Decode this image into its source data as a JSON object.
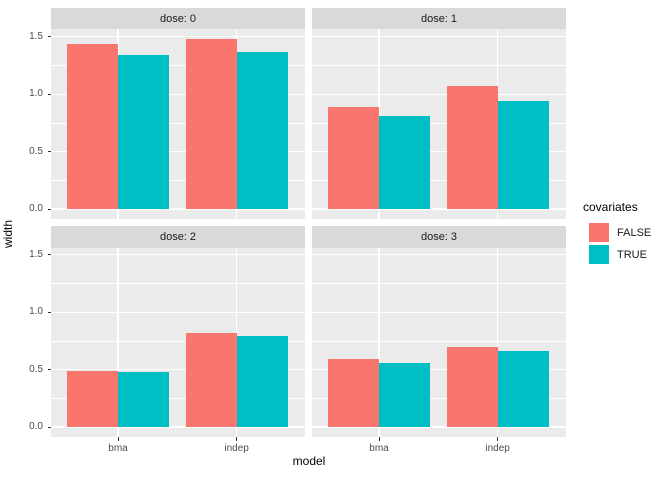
{
  "figure": {
    "colors": {
      "background": "#FFFFFF",
      "panel_bg": "#EBEBEB",
      "strip_bg": "#D9D9D9",
      "grid": "#FFFFFF",
      "axis_text": "#4D4D4D",
      "tick_mark": "#333333",
      "title_text": "#000000",
      "strip_text": "#1A1A1A"
    }
  },
  "legend": {
    "title": "covariates",
    "items": [
      {
        "label": "FALSE",
        "color": "#F8766D"
      },
      {
        "label": "TRUE",
        "color": "#00BFC4"
      }
    ]
  },
  "chart_data": {
    "type": "bar",
    "title": "",
    "xlabel": "model",
    "ylabel": "width",
    "categories": [
      "bma",
      "indep"
    ],
    "faceting": {
      "variable": "dose",
      "layout": "2x2 grid"
    },
    "facets": [
      {
        "label": "dose: 0",
        "series": [
          {
            "name": "FALSE",
            "values": [
              1.44,
              1.48
            ]
          },
          {
            "name": "TRUE",
            "values": [
              1.34,
              1.37
            ]
          }
        ]
      },
      {
        "label": "dose: 1",
        "series": [
          {
            "name": "FALSE",
            "values": [
              0.89,
              1.07
            ]
          },
          {
            "name": "TRUE",
            "values": [
              0.81,
              0.94
            ]
          }
        ]
      },
      {
        "label": "dose: 2",
        "series": [
          {
            "name": "FALSE",
            "values": [
              0.49,
              0.82
            ]
          },
          {
            "name": "TRUE",
            "values": [
              0.48,
              0.79
            ]
          }
        ]
      },
      {
        "label": "dose: 3",
        "series": [
          {
            "name": "FALSE",
            "values": [
              0.59,
              0.7
            ]
          },
          {
            "name": "TRUE",
            "values": [
              0.56,
              0.66
            ]
          }
        ]
      }
    ],
    "series_colors": {
      "FALSE": "#F8766D",
      "TRUE": "#00BFC4"
    },
    "y_ticks": [
      {
        "value": 0.0,
        "label": "0.0"
      },
      {
        "value": 0.5,
        "label": "0.5"
      },
      {
        "value": 1.0,
        "label": "1.0"
      },
      {
        "value": 1.5,
        "label": "1.5"
      }
    ],
    "ylim": [
      0,
      1.56
    ],
    "grid": "major and minor horizontal white lines, major vertical white lines",
    "legend_position": "right"
  }
}
